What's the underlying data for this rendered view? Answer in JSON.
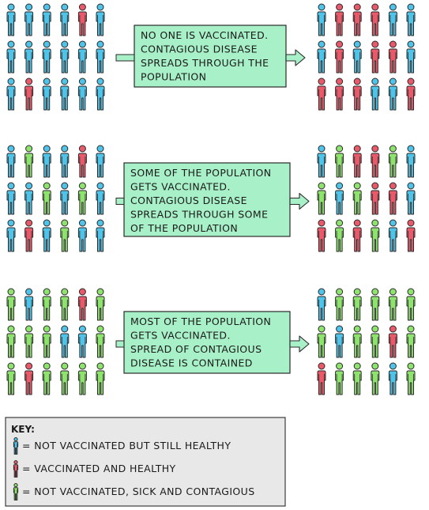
{
  "colors": {
    "blue": "#4fc3e8",
    "red": "#e85a6a",
    "green": "#8ee36e",
    "box_fill": "#a8f0c8",
    "key_fill": "#e8e8e8",
    "outline": "#2a2a2a"
  },
  "panels": [
    {
      "text_lines": [
        "NO ONE IS VACCINATED.",
        "CONTAGIOUS DISEASE",
        "SPREADS THROUGH THE",
        "POPULATION"
      ],
      "before": [
        [
          "blue",
          "blue",
          "blue",
          "blue",
          "red",
          "blue"
        ],
        [
          "blue",
          "blue",
          "blue",
          "blue",
          "blue",
          "blue"
        ],
        [
          "blue",
          "red",
          "blue",
          "blue",
          "blue",
          "blue"
        ]
      ],
      "after": [
        [
          "blue",
          "red",
          "red",
          "red",
          "blue",
          "blue"
        ],
        [
          "blue",
          "red",
          "blue",
          "red",
          "red",
          "blue"
        ],
        [
          "red",
          "red",
          "red",
          "blue",
          "blue",
          "red"
        ]
      ]
    },
    {
      "text_lines": [
        "SOME OF THE POPULATION",
        "GETS VACCINATED.",
        "CONTAGIOUS DISEASE",
        "SPREADS THROUGH SOME",
        "OF THE POPULATION"
      ],
      "before": [
        [
          "blue",
          "green",
          "blue",
          "blue",
          "red",
          "blue"
        ],
        [
          "blue",
          "blue",
          "green",
          "blue",
          "green",
          "blue"
        ],
        [
          "blue",
          "red",
          "blue",
          "green",
          "blue",
          "blue"
        ]
      ],
      "after": [
        [
          "blue",
          "green",
          "red",
          "red",
          "green",
          "blue"
        ],
        [
          "green",
          "blue",
          "green",
          "red",
          "red",
          "blue"
        ],
        [
          "red",
          "green",
          "red",
          "green",
          "blue",
          "red"
        ]
      ]
    },
    {
      "text_lines": [
        "MOST OF THE POPULATION",
        "GETS VACCINATED.",
        "SPREAD OF CONTAGIOUS",
        "DISEASE IS CONTAINED"
      ],
      "before": [
        [
          "green",
          "blue",
          "green",
          "green",
          "red",
          "green"
        ],
        [
          "green",
          "green",
          "green",
          "blue",
          "blue",
          "green"
        ],
        [
          "green",
          "red",
          "green",
          "green",
          "green",
          "green"
        ]
      ],
      "after": [
        [
          "blue",
          "green",
          "green",
          "green",
          "green",
          "green"
        ],
        [
          "green",
          "blue",
          "green",
          "green",
          "red",
          "green"
        ],
        [
          "red",
          "green",
          "green",
          "green",
          "blue",
          "green"
        ]
      ]
    }
  ],
  "key": {
    "title": "KEY:",
    "items": [
      {
        "color": "blue",
        "label": "= NOT VACCINATED BUT STILL HEALTHY"
      },
      {
        "color": "red",
        "label": "= VACCINATED AND HEALTHY"
      },
      {
        "color": "green",
        "label": "= NOT VACCINATED, SICK AND CONTAGIOUS"
      }
    ]
  }
}
